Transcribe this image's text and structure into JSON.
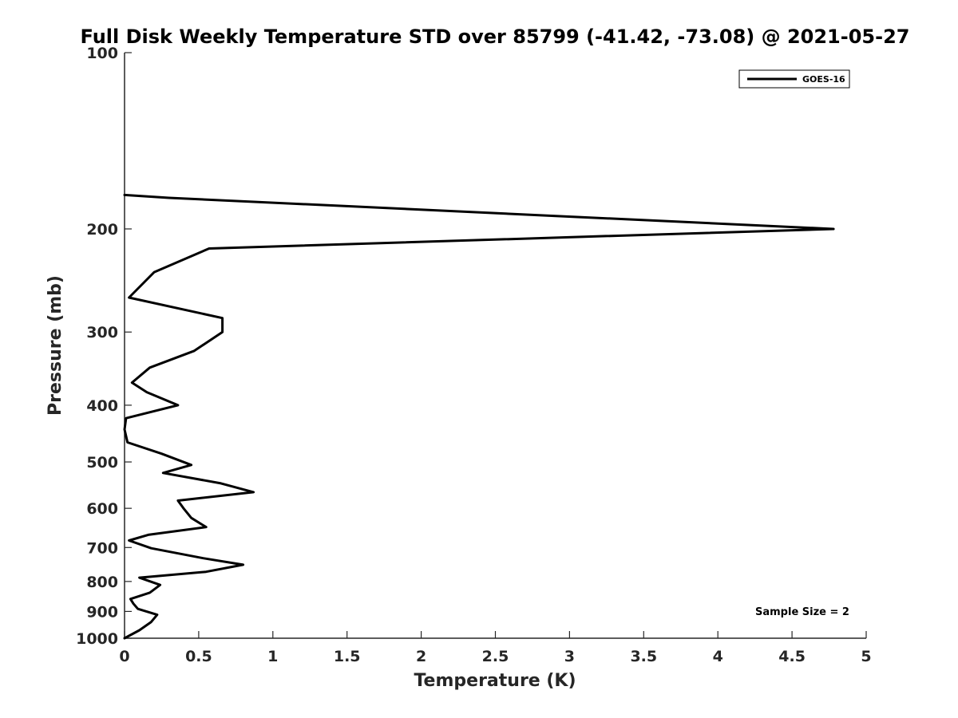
{
  "chart_data": {
    "type": "line",
    "title": "Full Disk Weekly Temperature STD over 85799 (-41.42, -73.08) @ 2021-05-27",
    "xlabel": "Temperature (K)",
    "ylabel": "Pressure (mb)",
    "xlim": [
      0,
      5
    ],
    "ylim": [
      100,
      1000
    ],
    "y_scale": "log",
    "y_reversed": true,
    "xticks": [
      0,
      0.5,
      1,
      1.5,
      2,
      2.5,
      3,
      3.5,
      4,
      4.5,
      5
    ],
    "xtick_labels": [
      "0",
      "0.5",
      "1",
      "1.5",
      "2",
      "2.5",
      "3",
      "3.5",
      "4",
      "4.5",
      "5"
    ],
    "yticks": [
      100,
      200,
      300,
      400,
      500,
      600,
      700,
      800,
      900,
      1000
    ],
    "ytick_labels": [
      "100",
      "200",
      "300",
      "400",
      "500",
      "600",
      "700",
      "800",
      "900",
      "1000"
    ],
    "grid": false,
    "legend_position": "top-right",
    "annotation": "Sample Size = 2",
    "series": [
      {
        "name": "GOES-16",
        "color": "#000000",
        "points": [
          [
            0,
            175
          ],
          [
            0.3,
            177
          ],
          [
            4.78,
            200
          ],
          [
            0.57,
            216
          ],
          [
            0.2,
            237
          ],
          [
            0.03,
            262
          ],
          [
            0.66,
            284
          ],
          [
            0.66,
            300
          ],
          [
            0.47,
            323
          ],
          [
            0.17,
            345
          ],
          [
            0.05,
            366
          ],
          [
            0.15,
            380
          ],
          [
            0.36,
            400
          ],
          [
            0.01,
            421
          ],
          [
            0.0,
            440
          ],
          [
            0.02,
            463
          ],
          [
            0.25,
            484
          ],
          [
            0.45,
            506
          ],
          [
            0.26,
            522
          ],
          [
            0.65,
            544
          ],
          [
            0.87,
            563
          ],
          [
            0.36,
            582
          ],
          [
            0.4,
            601
          ],
          [
            0.45,
            623
          ],
          [
            0.55,
            646
          ],
          [
            0.16,
            666
          ],
          [
            0.03,
            681
          ],
          [
            0.18,
            702
          ],
          [
            0.53,
            730
          ],
          [
            0.8,
            749
          ],
          [
            0.55,
            770
          ],
          [
            0.1,
            788
          ],
          [
            0.24,
            811
          ],
          [
            0.17,
            836
          ],
          [
            0.04,
            857
          ],
          [
            0.06,
            873
          ],
          [
            0.09,
            891
          ],
          [
            0.22,
            912
          ],
          [
            0.18,
            938
          ],
          [
            0.1,
            969
          ],
          [
            0,
            1000
          ]
        ]
      }
    ]
  }
}
